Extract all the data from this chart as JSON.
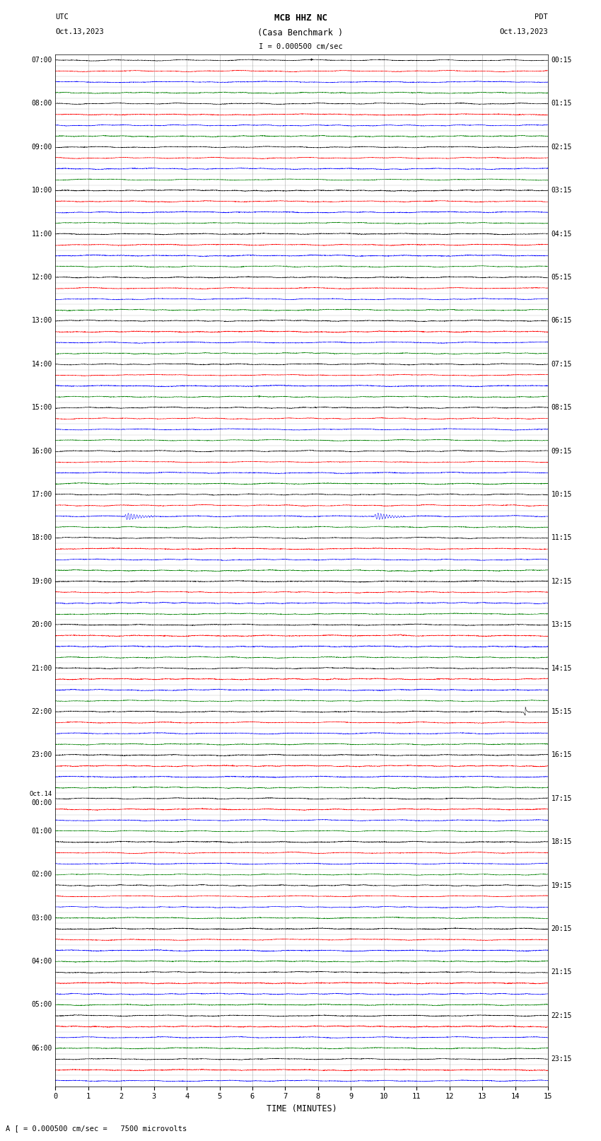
{
  "title_line1": "MCB HHZ NC",
  "title_line2": "(Casa Benchmark )",
  "scale_label": "I = 0.000500 cm/sec",
  "left_header_line1": "UTC",
  "left_header_line2": "Oct.13,2023",
  "right_header_line1": "PDT",
  "right_header_line2": "Oct.13,2023",
  "footer": "A [ = 0.000500 cm/sec =   7500 microvolts",
  "xlabel": "TIME (MINUTES)",
  "utc_times": [
    "07:00",
    "",
    "",
    "",
    "08:00",
    "",
    "",
    "",
    "09:00",
    "",
    "",
    "",
    "10:00",
    "",
    "",
    "",
    "11:00",
    "",
    "",
    "",
    "12:00",
    "",
    "",
    "",
    "13:00",
    "",
    "",
    "",
    "14:00",
    "",
    "",
    "",
    "15:00",
    "",
    "",
    "",
    "16:00",
    "",
    "",
    "",
    "17:00",
    "",
    "",
    "",
    "18:00",
    "",
    "",
    "",
    "19:00",
    "",
    "",
    "",
    "20:00",
    "",
    "",
    "",
    "21:00",
    "",
    "",
    "",
    "22:00",
    "",
    "",
    "",
    "23:00",
    "",
    "",
    "",
    "Oct.14",
    "00:00",
    "",
    "",
    "01:00",
    "",
    "",
    "",
    "02:00",
    "",
    "",
    "",
    "03:00",
    "",
    "",
    "",
    "04:00",
    "",
    "",
    "",
    "05:00",
    "",
    "",
    "",
    "06:00",
    "",
    ""
  ],
  "pdt_times": [
    "00:15",
    "",
    "",
    "",
    "01:15",
    "",
    "",
    "",
    "02:15",
    "",
    "",
    "",
    "03:15",
    "",
    "",
    "",
    "04:15",
    "",
    "",
    "",
    "05:15",
    "",
    "",
    "",
    "06:15",
    "",
    "",
    "",
    "07:15",
    "",
    "",
    "",
    "08:15",
    "",
    "",
    "",
    "09:15",
    "",
    "",
    "",
    "10:15",
    "",
    "",
    "",
    "11:15",
    "",
    "",
    "",
    "12:15",
    "",
    "",
    "",
    "13:15",
    "",
    "",
    "",
    "14:15",
    "",
    "",
    "",
    "15:15",
    "",
    "",
    "",
    "16:15",
    "",
    "",
    "",
    "17:15",
    "",
    "",
    "",
    "18:15",
    "",
    "",
    "",
    "19:15",
    "",
    "",
    "",
    "20:15",
    "",
    "",
    "",
    "21:15",
    "",
    "",
    "",
    "22:15",
    "",
    "",
    "",
    "23:15",
    "",
    ""
  ],
  "trace_colors": [
    "black",
    "red",
    "blue",
    "green"
  ],
  "n_rows": 95,
  "minutes": 15,
  "background_color": "white",
  "grid_color": "#888888",
  "noise_amplitude": 0.03,
  "linewidth": 0.35,
  "event_blue_row": 42,
  "event_blue_amp": 0.32,
  "event_blue_times": [
    2.2,
    9.8
  ],
  "event_green_row": 60,
  "event_green_amp": 0.55,
  "event_green_time": 14.3,
  "event_red_row": 53,
  "event_red_amp": 0.08,
  "event_red_time": 10.5,
  "event_red2_row": 57,
  "event_red2_amp": 0.08,
  "event_red2_time": 8.5
}
